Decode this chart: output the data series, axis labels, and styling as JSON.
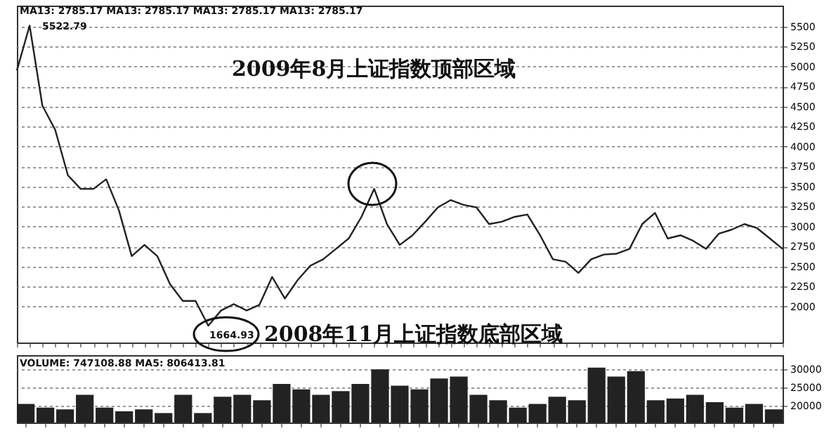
{
  "chart_data": [
    {
      "type": "line",
      "color": "#222222",
      "grid": "y",
      "tick_labels": "y",
      "annotations": [
        "MA13: 2785.17  MA13: 2785.17  MA13: 2785.17  MA13: 2785.17",
        "5522.79",
        "2009年8月上证指数顶部区域",
        "1664.93",
        "2008年11月上证指数底部区域"
      ],
      "categories": [
        null,
        null,
        null,
        null,
        null,
        null,
        null,
        null,
        null,
        null,
        null,
        null,
        null,
        null,
        null,
        null,
        null,
        null,
        null,
        null,
        null,
        null,
        null,
        null,
        null,
        null,
        null,
        null,
        null,
        null,
        null,
        null,
        null,
        null,
        null,
        null,
        null,
        null,
        null,
        null,
        null,
        null,
        null,
        null,
        null,
        null,
        null,
        null,
        null,
        null,
        null,
        null,
        null,
        null,
        null,
        null,
        null,
        null,
        null,
        null,
        null
      ],
      "values": [
        4950,
        5510,
        4510,
        4210,
        3640,
        3470,
        3470,
        3590,
        3200,
        2630,
        2770,
        2630,
        2280,
        2070,
        2070,
        1760,
        1950,
        2030,
        1950,
        2020,
        2370,
        2100,
        2330,
        2510,
        2590,
        2720,
        2850,
        3120,
        3470,
        3030,
        2770,
        2890,
        3060,
        3240,
        3330,
        3270,
        3240,
        3030,
        3060,
        3120,
        3150,
        2890,
        2590,
        2560,
        2420,
        2590,
        2650,
        2660,
        2720,
        3030,
        3170,
        2850,
        2890,
        2820,
        2720,
        2910,
        2960,
        3030,
        2980,
        2850,
        2720
      ],
      "ylim": [
        1550,
        5760
      ],
      "yticks": [
        2000,
        2250,
        2500,
        2750,
        3000,
        3250,
        3500,
        3750,
        4000,
        4250,
        4500,
        4750,
        5000,
        5250,
        5500
      ]
    },
    {
      "type": "bar",
      "color": "#222222",
      "grid": "y",
      "tick_labels": "y",
      "annotations": [
        "VOLUME: 747108.88  MA5: 806413.81"
      ],
      "categories": [
        null,
        null,
        null,
        null,
        null,
        null,
        null,
        null,
        null,
        null,
        null,
        null,
        null,
        null,
        null,
        null,
        null,
        null,
        null,
        null,
        null,
        null,
        null,
        null,
        null,
        null,
        null,
        null,
        null,
        null,
        null,
        null,
        null,
        null,
        null,
        null,
        null,
        null,
        null
      ],
      "values": [
        20500,
        19500,
        19000,
        23000,
        19500,
        18500,
        19000,
        18000,
        23000,
        18000,
        22500,
        23000,
        21500,
        26000,
        24500,
        23000,
        24000,
        26000,
        30000,
        25500,
        24500,
        27500,
        28000,
        23000,
        21500,
        19500,
        20500,
        22500,
        21500,
        30500,
        28000,
        29500,
        21500,
        22000,
        23000,
        21000,
        19500,
        20500,
        19000
      ],
      "ylim": [
        15400,
        33900
      ],
      "yticks": [
        20000,
        25000,
        30000
      ]
    }
  ]
}
